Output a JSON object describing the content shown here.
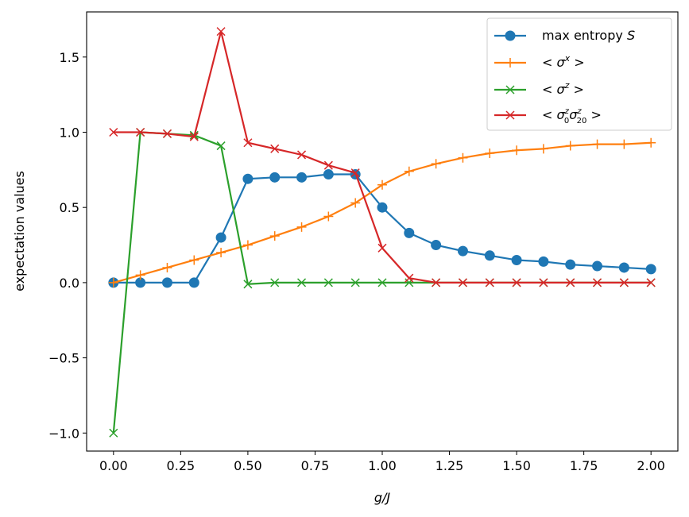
{
  "chart_data": {
    "type": "line",
    "title": "",
    "xlabel": "g/J",
    "ylabel": "expectation values",
    "xlim": [
      -0.1,
      2.1
    ],
    "ylim": [
      -1.12,
      1.8
    ],
    "xticks": [
      0.0,
      0.25,
      0.5,
      0.75,
      1.0,
      1.25,
      1.5,
      1.75,
      2.0
    ],
    "xtick_labels": [
      "0.00",
      "0.25",
      "0.50",
      "0.75",
      "1.00",
      "1.25",
      "1.50",
      "1.75",
      "2.00"
    ],
    "yticks": [
      -1.0,
      -0.5,
      0.0,
      0.5,
      1.0,
      1.5
    ],
    "ytick_labels": [
      "−1.0",
      "−0.5",
      "0.0",
      "0.5",
      "1.0",
      "1.5"
    ],
    "grid": false,
    "legend_position": "top-right",
    "x": [
      0.0,
      0.1,
      0.2,
      0.3,
      0.4,
      0.5,
      0.6,
      0.7,
      0.8,
      0.9,
      1.0,
      1.1,
      1.2,
      1.3,
      1.4,
      1.5,
      1.6,
      1.7,
      1.8,
      1.9,
      2.0
    ],
    "series": [
      {
        "name": "max entropy S",
        "color": "#1f77b4",
        "marker": "circle",
        "values": [
          0.0,
          0.0,
          0.0,
          0.0,
          0.3,
          0.69,
          0.7,
          0.7,
          0.72,
          0.72,
          0.5,
          0.33,
          0.25,
          0.21,
          0.18,
          0.15,
          0.14,
          0.12,
          0.11,
          0.1,
          0.09
        ]
      },
      {
        "name": "< σ^x >",
        "color": "#ff7f0e",
        "marker": "plus",
        "values": [
          0.0,
          0.05,
          0.1,
          0.15,
          0.2,
          0.25,
          0.31,
          0.37,
          0.44,
          0.53,
          0.65,
          0.74,
          0.79,
          0.83,
          0.86,
          0.88,
          0.89,
          0.91,
          0.92,
          0.92,
          0.93
        ]
      },
      {
        "name": "< σ^z >",
        "color": "#2ca02c",
        "marker": "x",
        "values": [
          -1.0,
          1.0,
          0.99,
          0.98,
          0.91,
          -0.01,
          0.0,
          0.0,
          0.0,
          0.0,
          0.0,
          0.0,
          0.0,
          0.0,
          0.0,
          0.0,
          0.0,
          0.0,
          0.0,
          0.0,
          0.0
        ]
      },
      {
        "name": "< σ^z_0 σ^z_20 >",
        "color": "#d62728",
        "marker": "x",
        "values": [
          1.0,
          1.0,
          0.99,
          0.97,
          1.67,
          0.93,
          0.89,
          0.85,
          0.78,
          0.73,
          0.23,
          0.03,
          0.0,
          0.0,
          0.0,
          0.0,
          0.0,
          0.0,
          0.0,
          0.0,
          0.0
        ]
      }
    ]
  },
  "legend": {
    "entry1": {
      "text": "max entropy ",
      "italic": "S"
    },
    "entry2": {
      "open": "< ",
      "sigma": "σ",
      "sup": "x",
      "close": " >"
    },
    "entry3": {
      "open": "< ",
      "sigma": "σ",
      "sup": "z",
      "close": " >"
    },
    "entry4": {
      "open": "< ",
      "sigma": "σ",
      "sup1": "z",
      "sub1": "0",
      "sup2": "z",
      "sub2": "20",
      "close": " >"
    }
  }
}
